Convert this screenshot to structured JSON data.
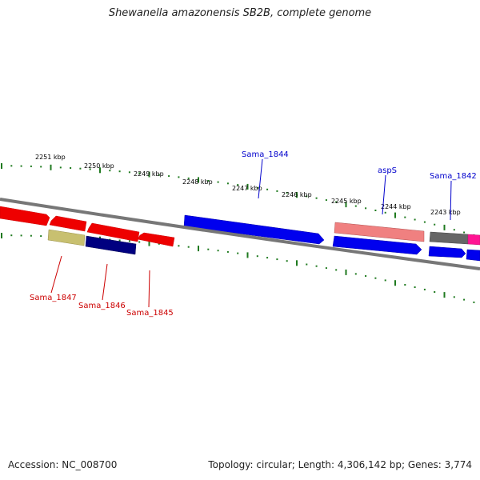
{
  "title": "Shewanella amazonensis SB2B, complete genome",
  "footer": {
    "accession": "Accession: NC_008700",
    "summary": "Topology: circular; Length: 4,306,142 bp; Genes: 3,774"
  },
  "colors": {
    "backbone": "#7a7a7a",
    "tick": "#1f7a1f",
    "forward_label": "#0000cc",
    "reverse_label": "#cc0000"
  },
  "ticks": [
    {
      "kbp": 2251,
      "label": "2251 kbp"
    },
    {
      "kbp": 2250,
      "label": "2250 kbp"
    },
    {
      "kbp": 2249,
      "label": "2249 kbp"
    },
    {
      "kbp": 2248,
      "label": "2248 kbp"
    },
    {
      "kbp": 2247,
      "label": "2247 kbp"
    },
    {
      "kbp": 2246,
      "label": "2246 kbp"
    },
    {
      "kbp": 2245,
      "label": "2245 kbp"
    },
    {
      "kbp": 2244,
      "label": "2244 kbp"
    },
    {
      "kbp": 2243,
      "label": "2243 kbp"
    }
  ],
  "labels": [
    {
      "text": "Sama_1844",
      "strand": "forward"
    },
    {
      "text": "aspS",
      "strand": "forward"
    },
    {
      "text": "Sama_1842",
      "strand": "forward"
    },
    {
      "text": "Sama_1847",
      "strand": "reverse"
    },
    {
      "text": "Sama_1846",
      "strand": "reverse"
    },
    {
      "text": "Sama_1845",
      "strand": "reverse"
    }
  ]
}
